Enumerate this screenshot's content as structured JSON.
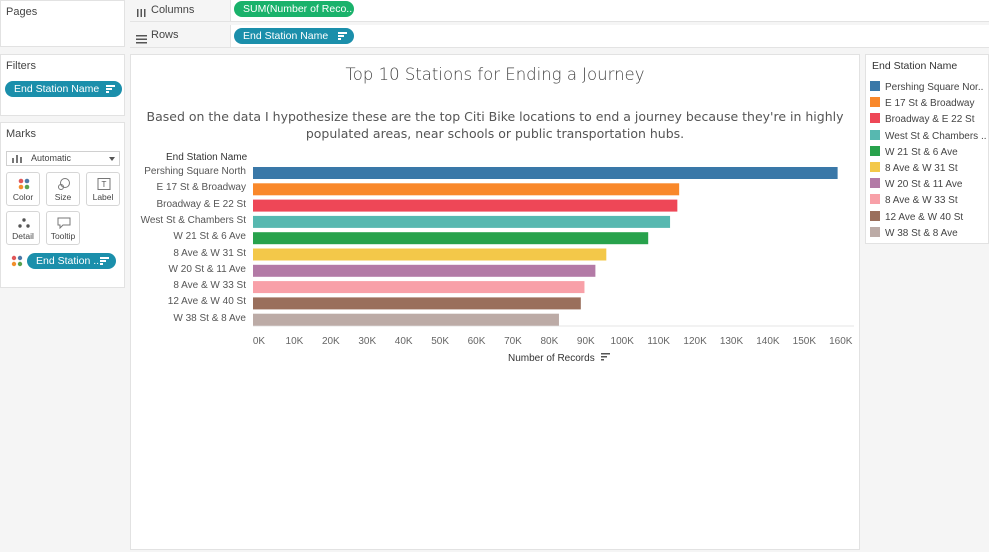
{
  "pages": {
    "title": "Pages"
  },
  "shelves": {
    "columns_label": "Columns",
    "columns_pill": "SUM(Number of Reco..",
    "rows_label": "Rows",
    "rows_pill": "End Station Name"
  },
  "filters": {
    "title": "Filters",
    "pill": "End Station Name"
  },
  "marks": {
    "title": "Marks",
    "mark_type": "Automatic",
    "buttons": {
      "color": "Color",
      "size": "Size",
      "label": "Label",
      "detail": "Detail",
      "tooltip": "Tooltip"
    },
    "color_pill": "End Station .."
  },
  "view": {
    "title": "Top 10 Stations for Ending a Journey",
    "subtitle": "Based on the data I hypothesize these are the top Citi Bike locations to end a journey because they're in highly populated areas, near schools or public transportation hubs.",
    "row_header": "End Station Name",
    "x_axis_label": "Number of Records"
  },
  "legend": {
    "title": "End Station Name",
    "items": [
      "Pershing Square Nor..",
      "E 17 St & Broadway",
      "Broadway & E 22 St",
      "West St & Chambers ..",
      "W 21 St & 6 Ave",
      "8 Ave & W 31 St",
      "W 20 St & 11 Ave",
      "8 Ave & W 33 St",
      "12 Ave & W 40 St",
      "W 38 St & 8 Ave"
    ]
  },
  "chart_data": {
    "type": "bar",
    "orientation": "horizontal",
    "categories": [
      "Pershing Square North",
      "E 17 St & Broadway",
      "Broadway & E 22 St",
      "West St & Chambers St",
      "W 21 St & 6 Ave",
      "8 Ave & W 31 St",
      "W 20 St & 11 Ave",
      "8 Ave & W 33 St",
      "12 Ave & W 40 St",
      "W 38 St & 8 Ave"
    ],
    "values": [
      160500,
      117000,
      116500,
      114500,
      108500,
      97000,
      94000,
      91000,
      90000,
      84000
    ],
    "colors": [
      "#3a78a8",
      "#f9882a",
      "#ee4757",
      "#57b8b0",
      "#28a24c",
      "#f3c849",
      "#b37aa6",
      "#f8a0a8",
      "#9a6f5c",
      "#bcaba6"
    ],
    "xticks": [
      "0K",
      "10K",
      "20K",
      "30K",
      "40K",
      "50K",
      "60K",
      "70K",
      "80K",
      "90K",
      "100K",
      "110K",
      "120K",
      "130K",
      "140K",
      "150K",
      "160K"
    ],
    "xlim": [
      0,
      165000
    ],
    "xlabel": "Number of Records",
    "ylabel": "End Station Name",
    "title": "Top 10 Stations for Ending a Journey",
    "grid": true
  }
}
